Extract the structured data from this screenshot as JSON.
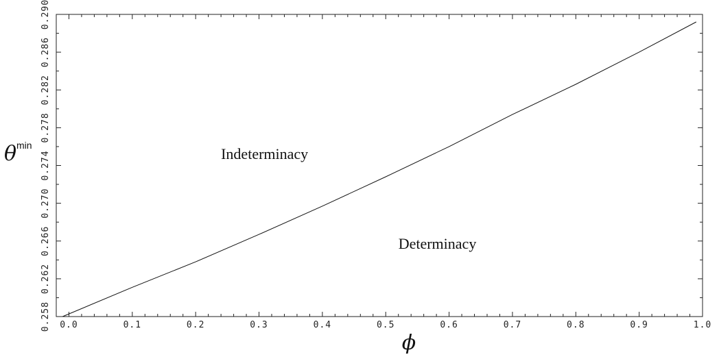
{
  "chart_data": {
    "type": "line",
    "xlabel": "ϕ",
    "ylabel_main": "θ",
    "ylabel_sup": "min",
    "xlim": [
      -0.02,
      1.0
    ],
    "ylim": [
      0.258,
      0.29
    ],
    "x_ticks": [
      0.0,
      0.1,
      0.2,
      0.3,
      0.4,
      0.5,
      0.6,
      0.7,
      0.8,
      0.9,
      1.0
    ],
    "x_tick_labels": [
      "0.0",
      "0.1",
      "0.2",
      "0.3",
      "0.4",
      "0.5",
      "0.6",
      "0.7",
      "0.8",
      "0.9",
      "1.0"
    ],
    "y_ticks": [
      0.258,
      0.262,
      0.266,
      0.27,
      0.274,
      0.278,
      0.282,
      0.286,
      0.29
    ],
    "y_tick_labels": [
      "0.258",
      "0.262",
      "0.266",
      "0.270",
      "0.274",
      "0.278",
      "0.282",
      "0.286",
      "0.290"
    ],
    "grid": false,
    "series": [
      {
        "x": [
          -0.01,
          0.1,
          0.2,
          0.3,
          0.4,
          0.5,
          0.6,
          0.7,
          0.8,
          0.9,
          0.99
        ],
        "y": [
          0.258,
          0.2611,
          0.2638,
          0.2667,
          0.2697,
          0.2728,
          0.276,
          0.2794,
          0.2826,
          0.286,
          0.2892
        ]
      }
    ],
    "annotations": [
      {
        "text": "Indeterminacy",
        "x": 0.24,
        "y": 0.2747
      },
      {
        "text": "Determinacy",
        "x": 0.52,
        "y": 0.2652
      }
    ]
  }
}
